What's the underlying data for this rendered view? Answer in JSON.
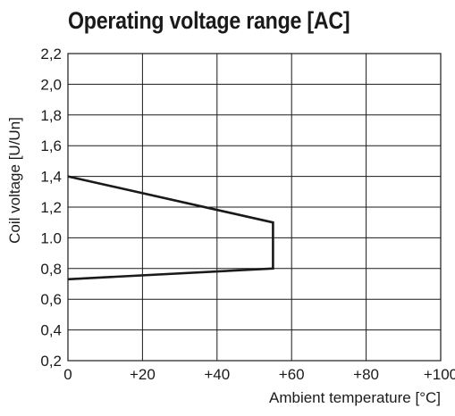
{
  "chart_data": {
    "type": "line",
    "title": "Operating voltage range [AC]",
    "xlabel": "Ambient temperature [°C]",
    "ylabel": "Coil voltage [U/Un]",
    "xlim": [
      0,
      100
    ],
    "ylim": [
      0.2,
      2.2
    ],
    "x_ticks": [
      0,
      20,
      40,
      60,
      80,
      100
    ],
    "x_tick_labels": [
      "0",
      "+20",
      "+40",
      "+60",
      "+80",
      "+100"
    ],
    "y_ticks": [
      0.2,
      0.4,
      0.6,
      0.8,
      1.0,
      1.2,
      1.4,
      1.6,
      1.8,
      2.0,
      2.2
    ],
    "y_tick_labels": [
      "0,2",
      "0,4",
      "0,6",
      "0,8",
      "1.0",
      "1,2",
      "1,4",
      "1,6",
      "1,8",
      "2,0",
      "2,2"
    ],
    "grid": true,
    "series": [
      {
        "x": [
          0,
          55,
          55,
          55,
          0
        ],
        "y": [
          1.4,
          1.1,
          1.1,
          0.8,
          0.73
        ]
      }
    ],
    "colors": {
      "line": "#1a1a1a",
      "grid": "#1a1a1a",
      "background": "#ffffff"
    }
  }
}
